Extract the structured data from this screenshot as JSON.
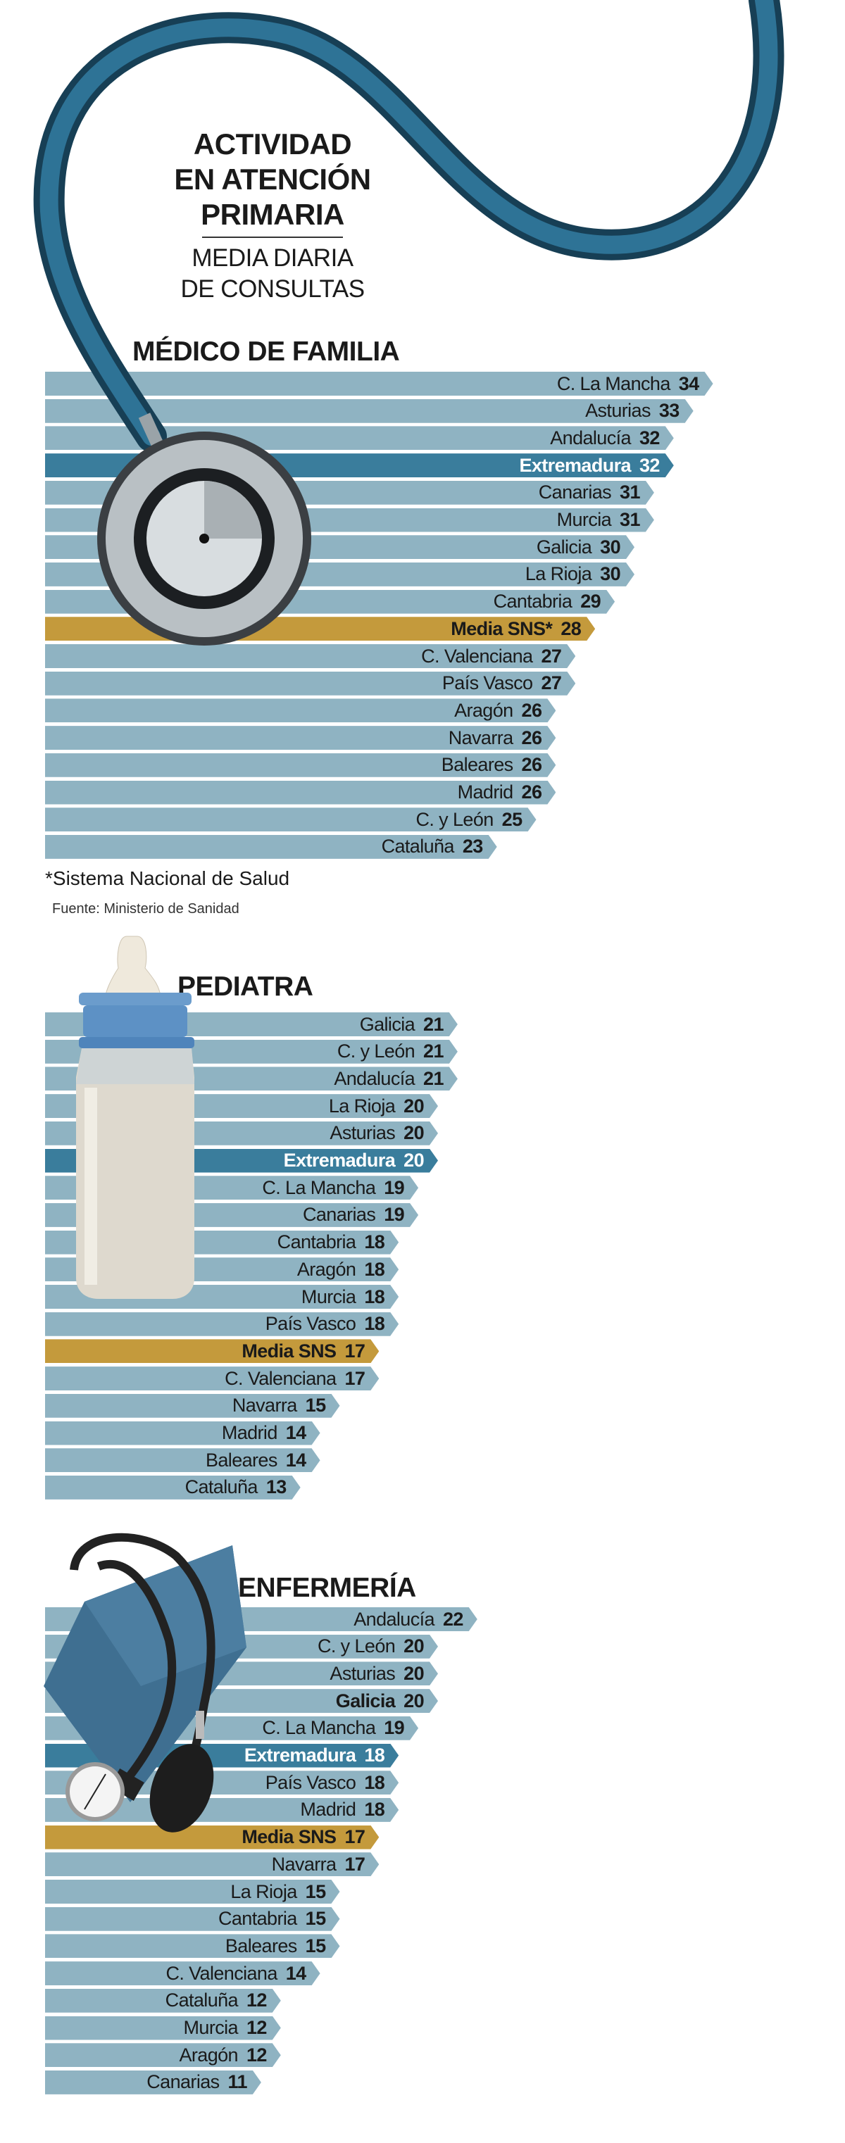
{
  "header": {
    "title_lines": [
      "ACTIVIDAD",
      "EN ATENCIÓN",
      "PRIMARIA"
    ],
    "subtitle_lines": [
      "MEDIA DIARIA",
      "DE CONSULTAS"
    ]
  },
  "colors": {
    "bar": "#8fb3c2",
    "extremadura": "#3a7d9c",
    "average": "#c49a3c"
  },
  "footnote": "*Sistema Nacional de Salud",
  "source": "Fuente: Ministerio de Sanidad",
  "chart_data": [
    {
      "type": "bar",
      "orientation": "horizontal",
      "title": "MÉDICO DE FAMILIA",
      "xlabel": "",
      "ylabel": "",
      "rows": [
        {
          "label": "C. La Mancha",
          "value": 34
        },
        {
          "label": "Asturias",
          "value": 33
        },
        {
          "label": "Andalucía",
          "value": 32
        },
        {
          "label": "Extremadura",
          "value": 32,
          "style": "extremadura"
        },
        {
          "label": "Canarias",
          "value": 31
        },
        {
          "label": "Murcia",
          "value": 31
        },
        {
          "label": "Galicia",
          "value": 30
        },
        {
          "label": "La Rioja",
          "value": 30
        },
        {
          "label": "Cantabria",
          "value": 29
        },
        {
          "label": "Media SNS*",
          "value": 28,
          "style": "average"
        },
        {
          "label": "C. Valenciana",
          "value": 27
        },
        {
          "label": "País Vasco",
          "value": 27
        },
        {
          "label": "Aragón",
          "value": 26
        },
        {
          "label": "Navarra",
          "value": 26
        },
        {
          "label": "Baleares",
          "value": 26
        },
        {
          "label": "Madrid",
          "value": 26
        },
        {
          "label": "C. y León",
          "value": 25
        },
        {
          "label": "Cataluña",
          "value": 23
        }
      ]
    },
    {
      "type": "bar",
      "orientation": "horizontal",
      "title": "PEDIATRA",
      "xlabel": "",
      "ylabel": "",
      "rows": [
        {
          "label": "Galicia",
          "value": 21
        },
        {
          "label": "C. y León",
          "value": 21
        },
        {
          "label": "Andalucía",
          "value": 21
        },
        {
          "label": "La Rioja",
          "value": 20
        },
        {
          "label": "Asturias",
          "value": 20
        },
        {
          "label": "Extremadura",
          "value": 20,
          "style": "extremadura"
        },
        {
          "label": "C. La Mancha",
          "value": 19
        },
        {
          "label": "Canarias",
          "value": 19
        },
        {
          "label": "Cantabria",
          "value": 18
        },
        {
          "label": "Aragón",
          "value": 18
        },
        {
          "label": "Murcia",
          "value": 18
        },
        {
          "label": "País Vasco",
          "value": 18
        },
        {
          "label": "Media SNS",
          "value": 17,
          "style": "average"
        },
        {
          "label": "C. Valenciana",
          "value": 17
        },
        {
          "label": "Navarra",
          "value": 15
        },
        {
          "label": "Madrid",
          "value": 14
        },
        {
          "label": "Baleares",
          "value": 14
        },
        {
          "label": "Cataluña",
          "value": 13
        }
      ]
    },
    {
      "type": "bar",
      "orientation": "horizontal",
      "title": "ENFERMERÍA",
      "xlabel": "",
      "ylabel": "",
      "rows": [
        {
          "label": "Andalucía",
          "value": 22
        },
        {
          "label": "C. y León",
          "value": 20
        },
        {
          "label": "Asturias",
          "value": 20
        },
        {
          "label": "Galicia",
          "value": 20,
          "style": "bold"
        },
        {
          "label": "C. La Mancha",
          "value": 19
        },
        {
          "label": "Extremadura",
          "value": 18,
          "style": "extremadura"
        },
        {
          "label": "País Vasco",
          "value": 18
        },
        {
          "label": "Madrid",
          "value": 18
        },
        {
          "label": "Media SNS",
          "value": 17,
          "style": "average"
        },
        {
          "label": "Navarra",
          "value": 17
        },
        {
          "label": "La Rioja",
          "value": 15
        },
        {
          "label": "Cantabria",
          "value": 15
        },
        {
          "label": "Baleares",
          "value": 15
        },
        {
          "label": "C. Valenciana",
          "value": 14
        },
        {
          "label": "Cataluña",
          "value": 12
        },
        {
          "label": "Murcia",
          "value": 12
        },
        {
          "label": "Aragón",
          "value": 12
        },
        {
          "label": "Canarias",
          "value": 11
        }
      ]
    }
  ]
}
